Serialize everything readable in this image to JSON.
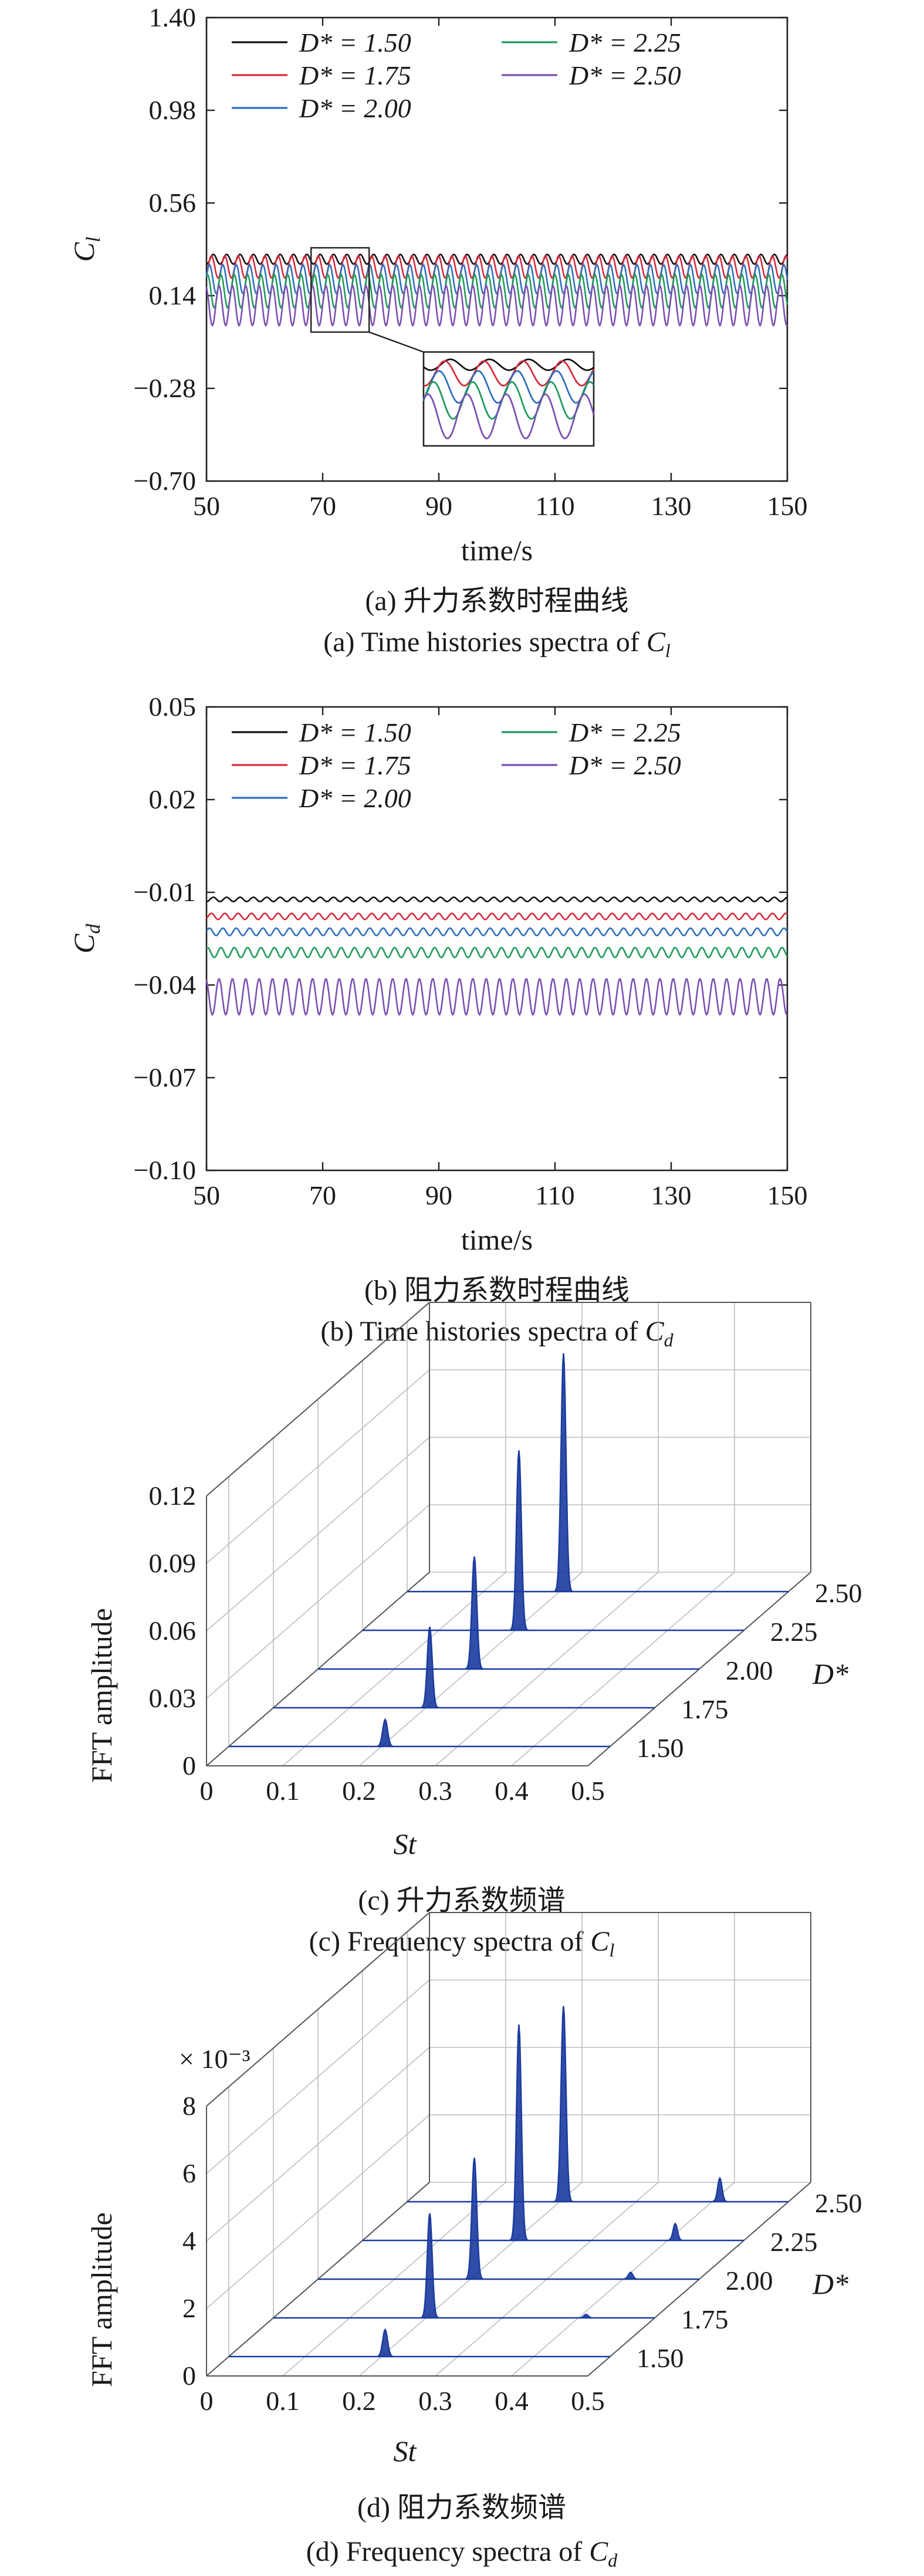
{
  "colors": {
    "D150": "#111111",
    "D175": "#d62b3c",
    "D200": "#2f6fbf",
    "D225": "#1f9a5b",
    "D250": "#7b4fb3",
    "spectrum": "#1a3a9e"
  },
  "chart_data": [
    {
      "type": "line",
      "title": "(a) 升力系数时程曲线",
      "subtitle": "(a) Time histories spectra of C_l",
      "xlabel": "time/s",
      "ylabel": "C_l",
      "xlim": [
        50,
        150
      ],
      "ylim": [
        -0.7,
        1.4
      ],
      "xticks": [
        "50",
        "70",
        "90",
        "110",
        "130",
        "150"
      ],
      "yticks": [
        "−0.70",
        "−0.28",
        "0.14",
        "0.56",
        "0.98",
        "1.40"
      ],
      "legend": "top-left, 2 columns",
      "period_s": 2.3,
      "inset": "zoom of t = 68–78 s",
      "series": [
        {
          "name": "D* = 1.50",
          "mean": 0.305,
          "amplitude": 0.022
        },
        {
          "name": "D* = 1.75",
          "mean": 0.27,
          "amplitude": 0.05
        },
        {
          "name": "D* = 2.00",
          "mean": 0.215,
          "amplitude": 0.065
        },
        {
          "name": "D* = 2.25",
          "mean": 0.16,
          "amplitude": 0.075
        },
        {
          "name": "D* = 2.50",
          "mean": 0.095,
          "amplitude": 0.09
        }
      ]
    },
    {
      "type": "line",
      "title": "(b) 阻力系数时程曲线",
      "subtitle": "(b) Time histories spectra of C_d",
      "xlabel": "time/s",
      "ylabel": "C_d",
      "xlim": [
        50,
        150
      ],
      "ylim": [
        -0.1,
        0.05
      ],
      "xticks": [
        "50",
        "70",
        "90",
        "110",
        "130",
        "150"
      ],
      "yticks": [
        "−0.10",
        "−0.07",
        "−0.04",
        "−0.01",
        "0.02",
        "0.05"
      ],
      "legend": "top-left, 2 columns",
      "period_s": 2.3,
      "series": [
        {
          "name": "D* = 1.50",
          "mean": -0.0123,
          "amplitude": 0.0007
        },
        {
          "name": "D* = 1.75",
          "mean": -0.0178,
          "amplitude": 0.001
        },
        {
          "name": "D* = 2.00",
          "mean": -0.0228,
          "amplitude": 0.0012
        },
        {
          "name": "D* = 2.25",
          "mean": -0.0295,
          "amplitude": 0.0016
        },
        {
          "name": "D* = 2.50",
          "mean": -0.0438,
          "amplitude": 0.0058
        }
      ]
    },
    {
      "type": "area",
      "title": "(c) 升力系数频谱",
      "subtitle": "(c) Frequency spectra of C_l",
      "xlabel": "St",
      "ylabel": "FFT amplitude",
      "zlabel": "D*",
      "xlim": [
        0,
        0.5
      ],
      "zlim": [
        0,
        0.12
      ],
      "xticks": [
        "0",
        "0.1",
        "0.2",
        "0.3",
        "0.4",
        "0.5"
      ],
      "zticks": [
        "0",
        "0.03",
        "0.06",
        "0.09",
        "0.12"
      ],
      "series_labels": [
        "1.50",
        "1.75",
        "2.00",
        "2.25",
        "2.50"
      ],
      "series": [
        {
          "D": 1.5,
          "peak_st": 0.205,
          "peak": 0.012
        },
        {
          "D": 1.75,
          "peak_st": 0.205,
          "peak": 0.036
        },
        {
          "D": 2.0,
          "peak_st": 0.205,
          "peak": 0.05
        },
        {
          "D": 2.25,
          "peak_st": 0.205,
          "peak": 0.08
        },
        {
          "D": 2.5,
          "peak_st": 0.205,
          "peak": 0.106
        }
      ]
    },
    {
      "type": "area",
      "title": "(d) 阻力系数频谱",
      "subtitle": "(d) Frequency spectra of C_d",
      "xlabel": "St",
      "ylabel": "FFT amplitude",
      "zlabel": "D*",
      "scale_label": "× 10⁻³",
      "xlim": [
        0,
        0.5
      ],
      "zlim": [
        0,
        8
      ],
      "xticks": [
        "0",
        "0.1",
        "0.2",
        "0.3",
        "0.4",
        "0.5"
      ],
      "zticks": [
        "0",
        "2",
        "4",
        "6",
        "8"
      ],
      "series_labels": [
        "1.50",
        "1.75",
        "2.00",
        "2.25",
        "2.50"
      ],
      "series": [
        {
          "D": 1.5,
          "peak_st": 0.205,
          "peak": 0.8,
          "second_st": 0.41,
          "second": 0.0
        },
        {
          "D": 1.75,
          "peak_st": 0.205,
          "peak": 3.1,
          "second_st": 0.41,
          "second": 0.1
        },
        {
          "D": 2.0,
          "peak_st": 0.205,
          "peak": 3.6,
          "second_st": 0.41,
          "second": 0.2
        },
        {
          "D": 2.25,
          "peak_st": 0.205,
          "peak": 6.4,
          "second_st": 0.41,
          "second": 0.5
        },
        {
          "D": 2.5,
          "peak_st": 0.205,
          "peak": 5.8,
          "second_st": 0.41,
          "second": 0.7
        }
      ]
    }
  ]
}
